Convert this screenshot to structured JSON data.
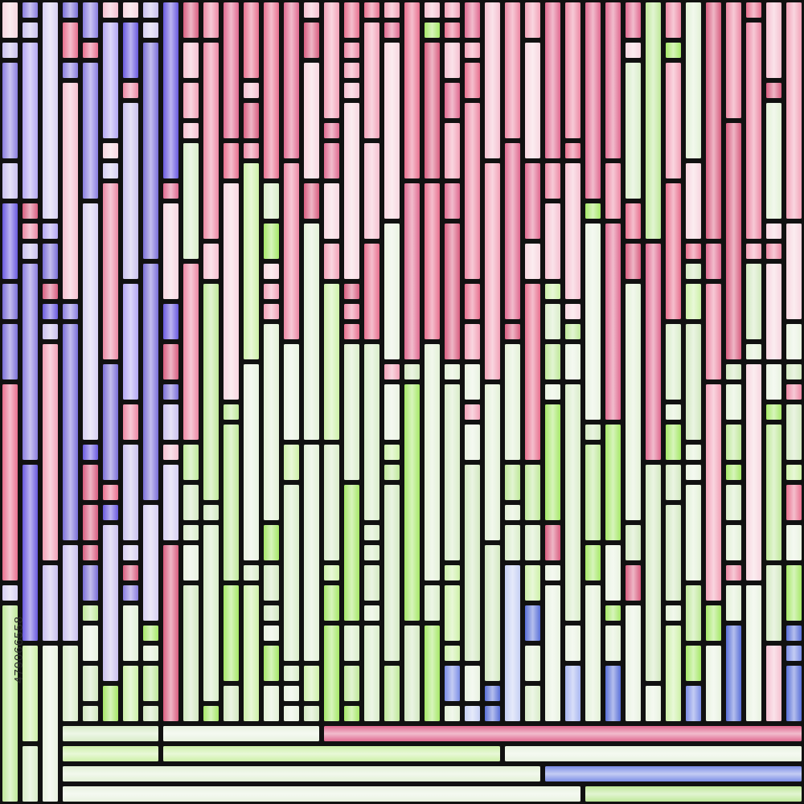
{
  "watermark": {
    "id": "479066558"
  }
}
